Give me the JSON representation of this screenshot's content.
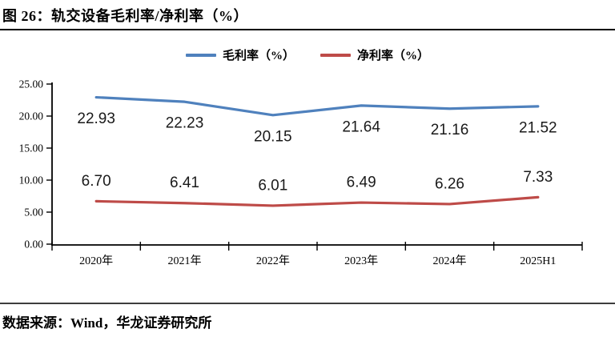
{
  "figure": {
    "title": "图 26：轨交设备毛利率/净利率（%）",
    "source": "数据来源：Wind，华龙证券研究所"
  },
  "colors": {
    "gross_margin_line": "#4F81BD",
    "net_margin_line": "#BE4B48",
    "axis": "#000000",
    "text": "#000000"
  },
  "chart_data": {
    "type": "line",
    "title": "轨交设备毛利率/净利率（%）",
    "categories": [
      "2020年",
      "2021年",
      "2022年",
      "2023年",
      "2024年",
      "2025H1"
    ],
    "series": [
      {
        "name": "毛利率（%）",
        "values": [
          22.93,
          22.23,
          20.15,
          21.64,
          21.16,
          21.52
        ],
        "color": "#4F81BD",
        "label_position": "below"
      },
      {
        "name": "净利率（%）",
        "values": [
          6.7,
          6.41,
          6.01,
          6.49,
          6.26,
          7.33
        ],
        "color": "#BE4B48",
        "label_position": "above"
      }
    ],
    "xlabel": "",
    "ylabel": "",
    "ylim": [
      0,
      25
    ],
    "ytick_step": 5,
    "ytick_labels": [
      "0.00",
      "5.00",
      "10.00",
      "15.00",
      "20.00",
      "25.00"
    ],
    "grid": false,
    "legend_position": "top",
    "data_labels_format": "0.00"
  }
}
